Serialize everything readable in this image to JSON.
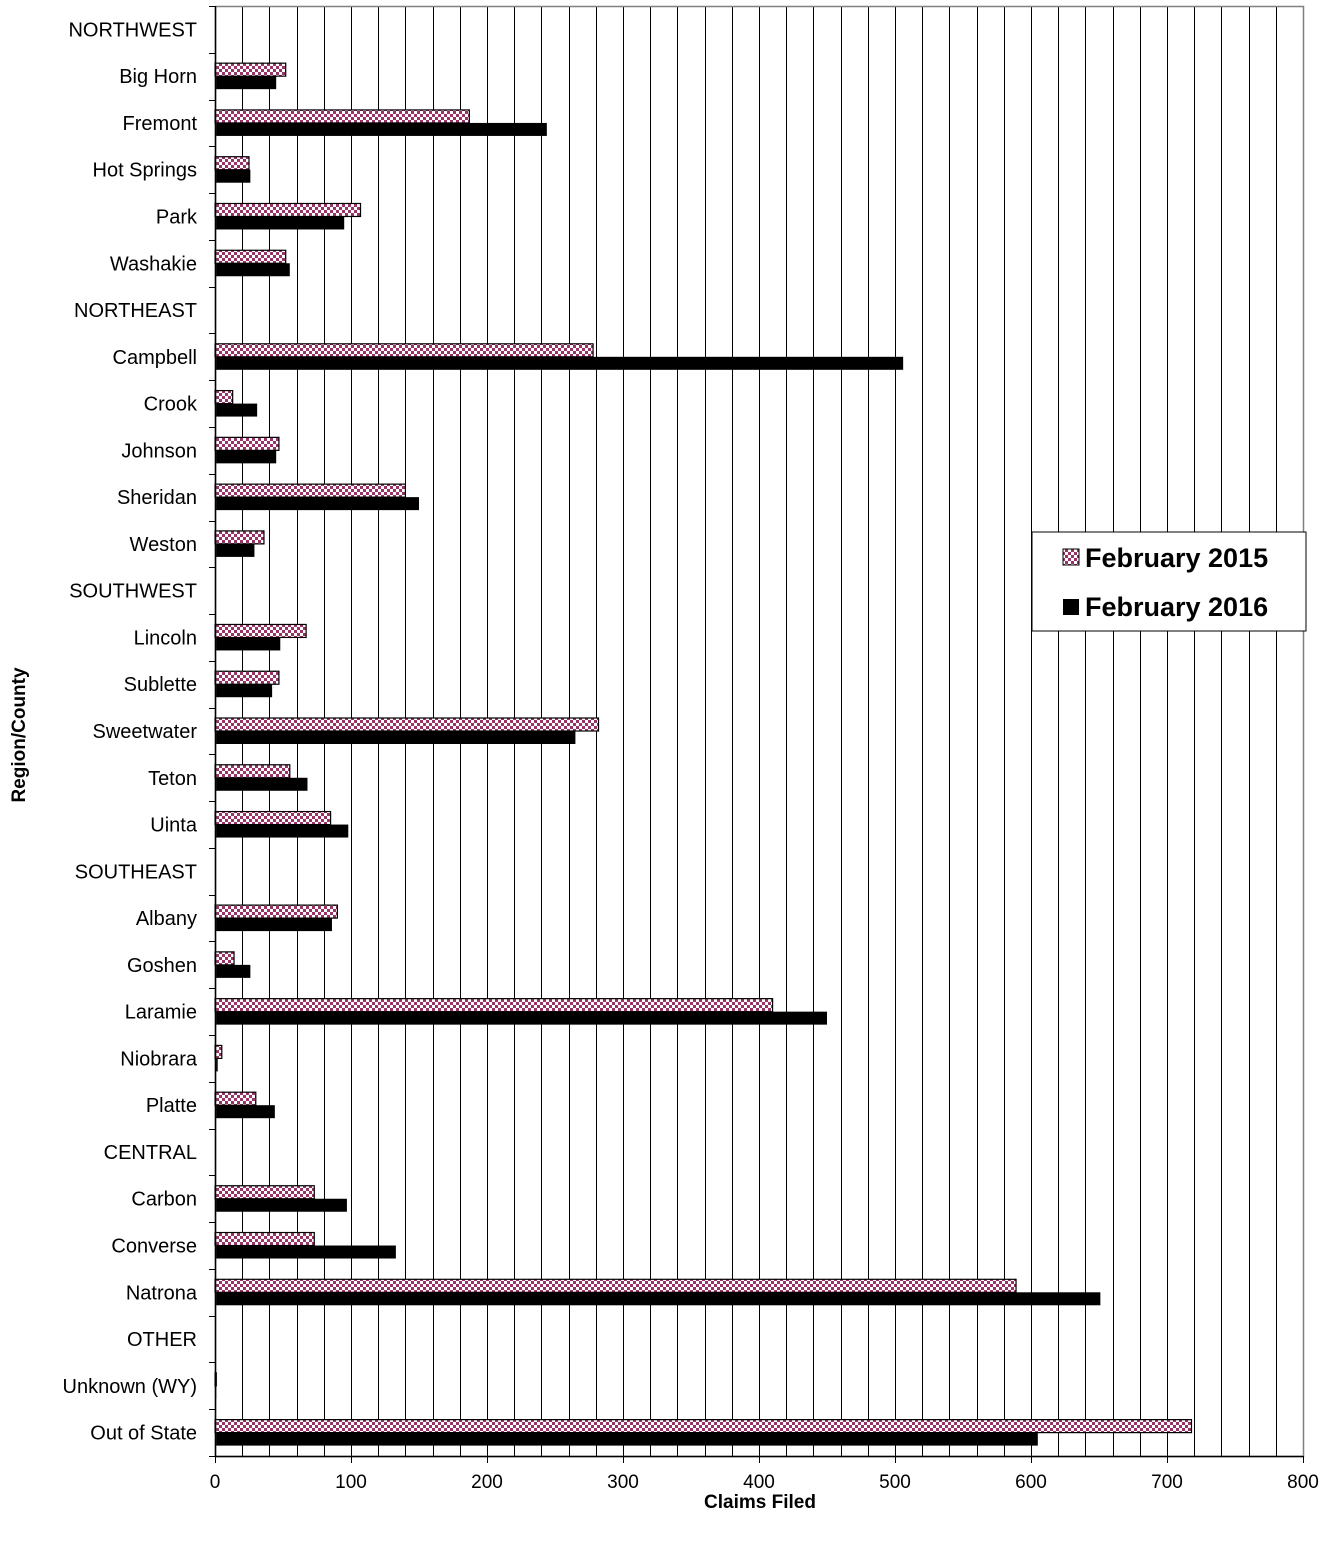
{
  "chart_data": {
    "type": "bar",
    "orientation": "horizontal",
    "categories": [
      "NORTHWEST",
      "Big Horn",
      "Fremont",
      "Hot Springs",
      "Park",
      "Washakie",
      "NORTHEAST",
      "Campbell",
      "Crook",
      "Johnson",
      "Sheridan",
      "Weston",
      "SOUTHWEST",
      "Lincoln",
      "Sublette",
      "Sweetwater",
      "Teton",
      "Uinta",
      "SOUTHEAST",
      "Albany",
      "Goshen",
      "Laramie",
      "Niobrara",
      "Platte",
      "CENTRAL",
      "Carbon",
      "Converse",
      "Natrona",
      "OTHER",
      "Unknown (WY)",
      "Out of State"
    ],
    "series": [
      {
        "name": "February 2015",
        "color": "#993366",
        "pattern": "checkered",
        "values": [
          null,
          52,
          187,
          25,
          107,
          52,
          null,
          278,
          13,
          47,
          140,
          36,
          null,
          67,
          47,
          282,
          55,
          85,
          null,
          90,
          14,
          410,
          5,
          30,
          null,
          73,
          73,
          589,
          null,
          1,
          718
        ]
      },
      {
        "name": "February 2016",
        "color": "#000000",
        "pattern": "solid",
        "values": [
          null,
          45,
          244,
          26,
          95,
          55,
          null,
          506,
          31,
          45,
          150,
          29,
          null,
          48,
          42,
          265,
          68,
          98,
          null,
          86,
          26,
          450,
          2,
          44,
          null,
          97,
          133,
          651,
          null,
          1,
          605
        ]
      }
    ],
    "xlabel": "Claims Filed",
    "ylabel": "Region/County",
    "xlim": [
      0,
      800
    ],
    "xticks": [
      0,
      100,
      200,
      300,
      400,
      500,
      600,
      700,
      800
    ],
    "grid_step": 20,
    "grid": "vertical",
    "legend_position": "right"
  }
}
